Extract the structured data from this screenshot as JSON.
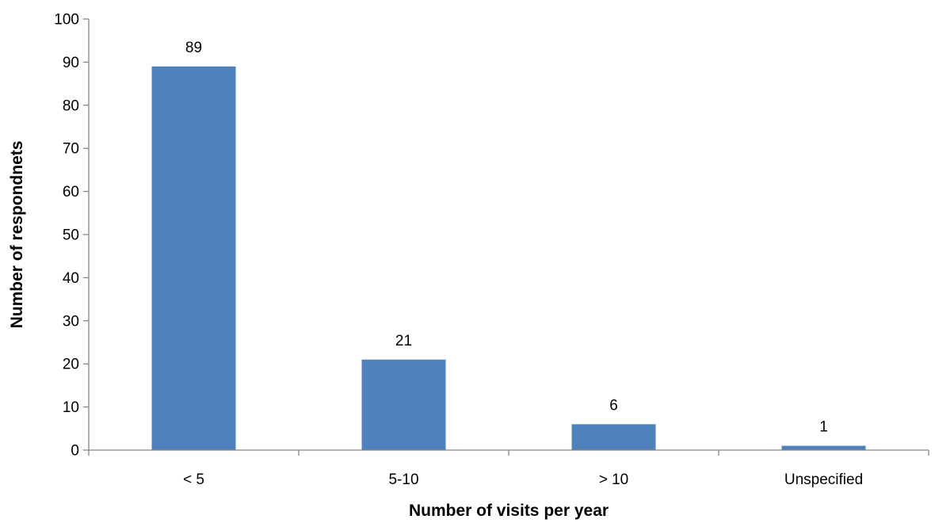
{
  "chart_data": {
    "type": "bar",
    "categories": [
      "< 5",
      "5-10",
      "> 10",
      "Unspecified"
    ],
    "values": [
      89,
      21,
      6,
      1
    ],
    "data_labels": [
      "89",
      "21",
      "6",
      "1"
    ],
    "title": "",
    "xlabel": "Number of visits per year",
    "ylabel": "Number of respondnets",
    "ylim": [
      0,
      100
    ],
    "yticks": [
      0,
      10,
      20,
      30,
      40,
      50,
      60,
      70,
      80,
      90,
      100
    ],
    "grid": false,
    "legend": "none",
    "colors": {
      "bar": "#4F81BD",
      "axis": "#868686",
      "text": "#000000"
    }
  }
}
